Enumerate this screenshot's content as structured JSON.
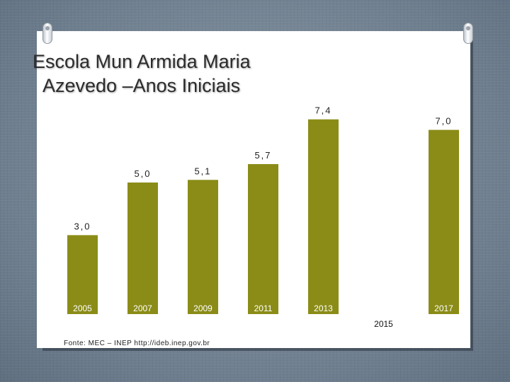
{
  "title_line1": "Escola Mun Armida Maria",
  "title_line2": "Azevedo –Anos Iniciais",
  "source": "Fonte: MEC – INEP  http://ideb.inep.gov.br",
  "colors": {
    "bar": "#8b8c17",
    "card": "#ffffff",
    "background": "#6f7f8f"
  },
  "chart_data": {
    "type": "bar",
    "title": "Escola Mun Armida Maria Azevedo –Anos Iniciais",
    "categories": [
      "2005",
      "2007",
      "2009",
      "2011",
      "2013",
      "2015",
      "2017"
    ],
    "values": [
      3.0,
      5.0,
      5.1,
      5.7,
      7.4,
      null,
      7.0
    ],
    "value_labels": [
      "3,0",
      "5,0",
      "5,1",
      "5,7",
      "7,4",
      "",
      "7,0"
    ],
    "xlabel": "",
    "ylabel": "",
    "ylim": [
      0,
      8
    ],
    "grid": false,
    "legend": "none"
  }
}
